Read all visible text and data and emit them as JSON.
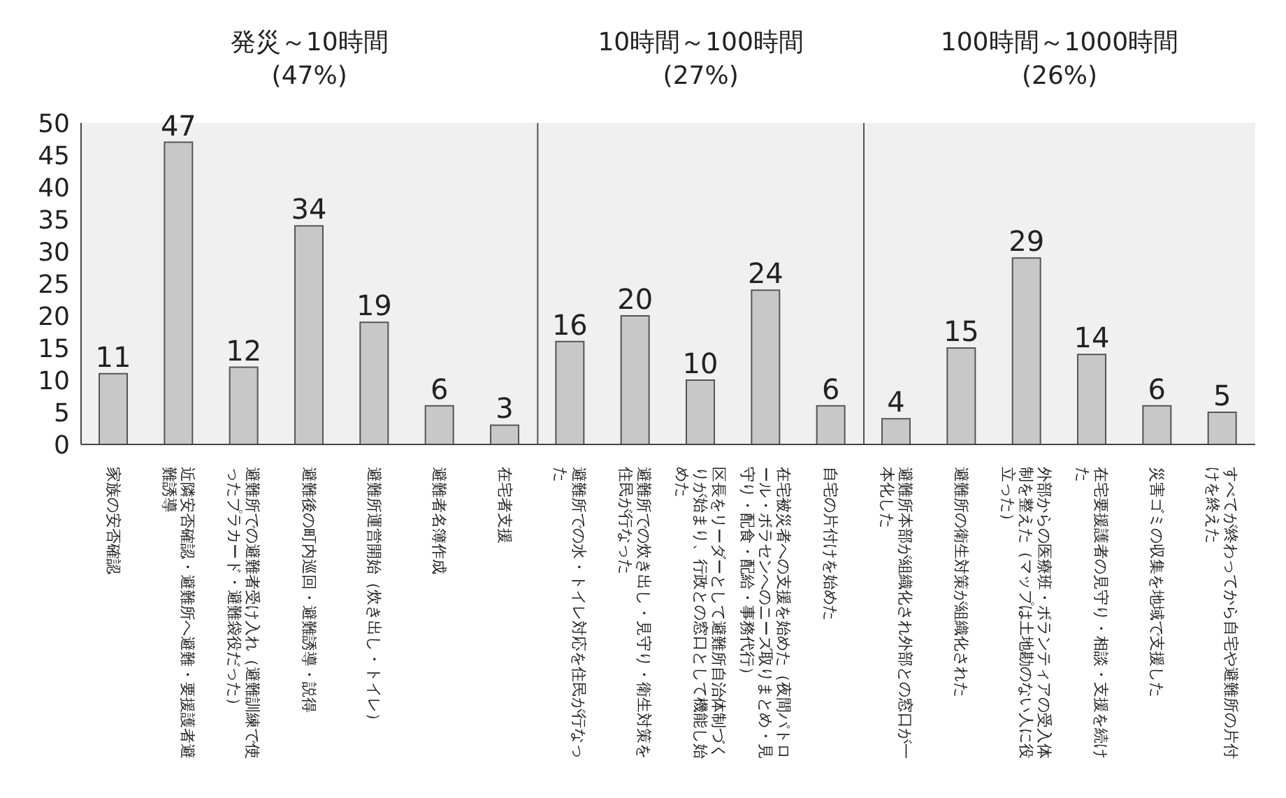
{
  "chart_data": {
    "type": "bar",
    "categories": [
      "家族の安否確認",
      "近隣安否確認・避難所へ避難・要援護者避難誘導",
      "避難所での避難者受け入れ（避難訓練で使ったプラカード・避難袋役だった）",
      "避難後の町内巡回・避難誘導・説得",
      "避難所運営開始（炊き出し・トイレ）",
      "避難者名簿作成",
      "在宅者支援",
      "避難所での水・トイレ対応を住民が行なった",
      "避難所での炊き出し・見守り・衛生対策を住民が行なった",
      "区長をリーダーとして避難所自治体制づくりが始まり、行政との窓口として機能し始めた",
      "在宅被災者への支援を始めた（夜間パトロール・ボラセンへのニーズ取りまとめ・見守り・配食・配給・事務代行）",
      "自宅の片付けを始めた",
      "避難所本部が組織化され外部との窓口が一本化した",
      "避難所の衛生対策が組織化された",
      "外部からの医療班・ボランティアの受入体制を整えた（マップは土地勘のない人に役立った）",
      "在宅要援護者の見守り・相談・支援を続けた",
      "災害ゴミの収集を地域で支援した",
      "すべてが終わってから自宅や避難所の片付けを終えた"
    ],
    "values": [
      11,
      47,
      12,
      34,
      19,
      6,
      3,
      16,
      20,
      10,
      24,
      6,
      4,
      15,
      29,
      14,
      6,
      5
    ],
    "color": "#c8c8c8",
    "ylim": [
      0,
      50
    ],
    "yticks": [
      0,
      5,
      10,
      15,
      20,
      25,
      30,
      35,
      40,
      45,
      50
    ],
    "data_labels": true,
    "bands": [
      {
        "axis": "x",
        "from": "家族の安否確認",
        "to": "在宅者支援",
        "label": "発災～10時間\n(47%)",
        "color": "#f0f0f0"
      },
      {
        "axis": "x",
        "from": "避難所での水・トイレ対応を住民が行なった",
        "to": "自宅の片付けを始めた",
        "label": "10時間～100時間\n(27%)",
        "color": "#f0f0f0"
      },
      {
        "axis": "x",
        "from": "避難所本部が組織化され外部との窓口が一本化した",
        "to": "すべてが終わってから自宅や避難所の片付けを終えた",
        "label": "100時間～1000時間\n(26%)",
        "color": "#f0f0f0"
      }
    ]
  }
}
